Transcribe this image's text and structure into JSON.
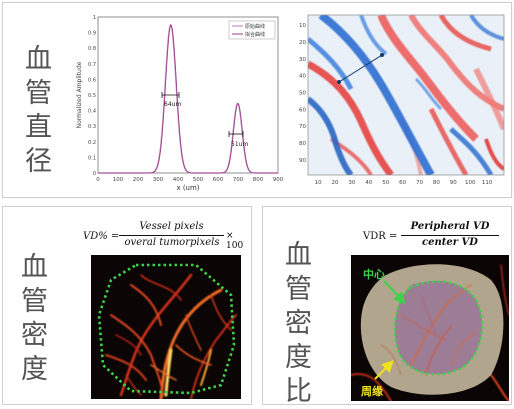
{
  "panel_top": {
    "title": [
      "血",
      "管",
      "直",
      "径"
    ],
    "profile_chart": {
      "ylabel": "Normalized Amplitude",
      "xlabel": "x (um)",
      "x_ticks": [
        "0",
        "100",
        "200",
        "300",
        "400",
        "500",
        "600",
        "700",
        "800",
        "900"
      ],
      "y_ticks": [
        "0",
        "0.1",
        "0.2",
        "0.3",
        "0.4",
        "0.5",
        "0.6",
        "0.7",
        "0.8",
        "0.9",
        "1"
      ],
      "legend": [
        "原始曲线",
        "拟合曲线"
      ],
      "annotation_a": "64um",
      "annotation_b": "51um"
    },
    "vessel_image": {
      "y_ticks": [
        "10",
        "20",
        "30",
        "40",
        "50",
        "60",
        "70",
        "80",
        "90"
      ],
      "x_ticks": [
        "10",
        "20",
        "30",
        "40",
        "50",
        "60",
        "70",
        "80",
        "90",
        "100",
        "110"
      ]
    }
  },
  "panel_density": {
    "title": [
      "血",
      "管",
      "密",
      "度"
    ],
    "formula_lhs": "VD% =",
    "numerator": "Vessel pixels",
    "denominator": "overal tumorpixels",
    "suffix": "× 100"
  },
  "panel_ratio": {
    "title": [
      "血",
      "管",
      "密",
      "度",
      "比"
    ],
    "formula_lhs": "VDR =",
    "numerator": "Peripheral VD",
    "denominator": "center VD",
    "label_center": "中心",
    "label_periphery": "周缘"
  },
  "colors": {
    "curve": "#b5559a",
    "vessel_blue": "#2a6fd0",
    "vessel_red": "#e0302a",
    "dashed_green": "#3fd14a",
    "label_yellow": "#f2e21c"
  }
}
